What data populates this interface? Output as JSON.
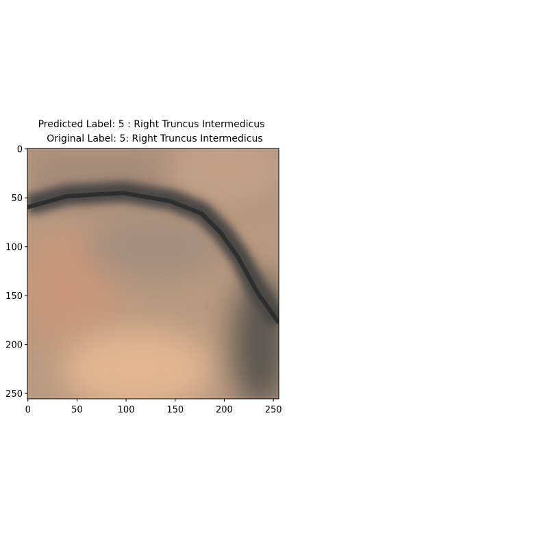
{
  "chart_data": {
    "type": "image",
    "title": [
      "Predicted Label: 5 : Right Truncus Intermedicus",
      "Original Label: 5: Right Truncus Intermedicus"
    ],
    "xlim": [
      -0.5,
      255.5
    ],
    "ylim": [
      255.5,
      -0.5
    ],
    "xticks": [
      0,
      50,
      100,
      150,
      200,
      250
    ],
    "yticks": [
      0,
      50,
      100,
      150,
      200,
      250
    ]
  }
}
